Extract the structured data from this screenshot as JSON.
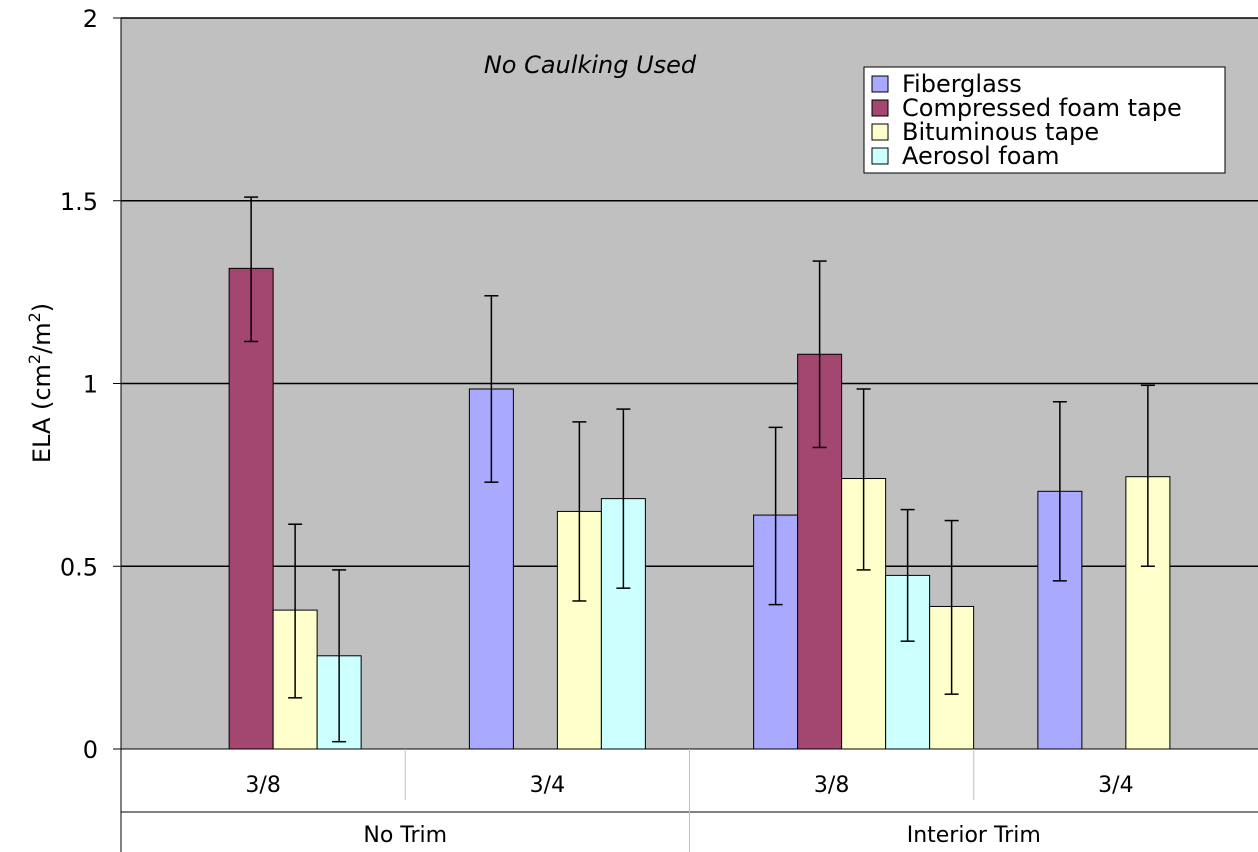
{
  "chart_data": {
    "type": "bar",
    "title": "",
    "annotation": "No Caulking Used",
    "ylabel": "ELA (cm²/m²)",
    "ylabel_parts": {
      "main": "ELA (cm",
      "exp1": "2",
      "mid": "/m",
      "exp2": "2",
      "end": ")"
    },
    "ylim": [
      0,
      2
    ],
    "yticks": [
      "0",
      "0.5",
      "1",
      "1.5",
      "2"
    ],
    "ytick_values": [
      0,
      0.5,
      1,
      1.5,
      2
    ],
    "grid": true,
    "legend_position": "top-right",
    "groups": [
      {
        "label": "No Trim",
        "subcategories": [
          "3/8",
          "3/4"
        ]
      },
      {
        "label": "Interior Trim",
        "subcategories": [
          "3/8",
          "3/4"
        ]
      }
    ],
    "categories": [
      "3/8",
      "3/4",
      "3/8",
      "3/4"
    ],
    "series": [
      {
        "name": "Fiberglass",
        "color": "#a9a9ff",
        "values": [
          null,
          0.985,
          0.64,
          0.705
        ],
        "err_low": [
          null,
          0.73,
          0.395,
          0.46
        ],
        "err_high": [
          null,
          1.24,
          0.88,
          0.95
        ]
      },
      {
        "name": "Compressed foam tape",
        "color": "#a34670",
        "values": [
          1.315,
          null,
          1.08,
          null
        ],
        "err_low": [
          1.115,
          null,
          0.825,
          null
        ],
        "err_high": [
          1.51,
          null,
          1.335,
          null
        ]
      },
      {
        "name": "Bituminous tape",
        "color": "#ffffcc",
        "values": [
          0.38,
          0.65,
          0.74,
          0.745
        ],
        "err_low": [
          0.14,
          0.405,
          0.49,
          0.5
        ],
        "err_high": [
          0.615,
          0.895,
          0.985,
          0.995
        ]
      },
      {
        "name": "Aerosol foam",
        "color": "#ccffff",
        "values": [
          0.255,
          0.685,
          0.475,
          null
        ],
        "err_low": [
          0.02,
          0.44,
          0.295,
          null
        ],
        "err_high": [
          0.49,
          0.93,
          0.655,
          null
        ]
      }
    ],
    "extra_bars": [
      {
        "series": "Bituminous tape",
        "category_index": 2,
        "value": 0.39,
        "err_low": 0.15,
        "err_high": 0.625
      }
    ],
    "plot_background": "#c0c0c0"
  }
}
